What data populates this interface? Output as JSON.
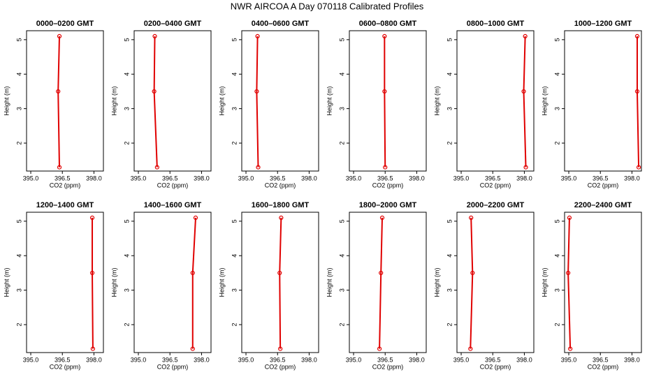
{
  "title": "NWR AIRCOA A  Day 070118  Calibrated Profiles",
  "chart_data": [
    {
      "type": "line",
      "title": "0000–0200 GMT",
      "xlabel": "CO2 (ppm)",
      "ylabel": "Height (m)",
      "color": "#e00000",
      "x": [
        396.36,
        396.3,
        396.36
      ],
      "values": [
        5.1,
        3.5,
        1.3
      ],
      "xlim": [
        394.8,
        398.45
      ],
      "ylim": [
        1.19,
        5.26
      ],
      "xticks": [
        {
          "value": 395,
          "label": "395.0"
        },
        {
          "value": 396.5,
          "label": "396.5"
        },
        {
          "value": 398,
          "label": "398.0"
        }
      ],
      "yticks": [
        2,
        3,
        4,
        5
      ]
    },
    {
      "type": "line",
      "title": "0200–0400 GMT",
      "xlabel": "CO2 (ppm)",
      "ylabel": "Height (m)",
      "color": "#e00000",
      "x": [
        395.78,
        395.75,
        395.89
      ],
      "values": [
        5.1,
        3.5,
        1.3
      ],
      "xlim": [
        394.8,
        398.45
      ],
      "ylim": [
        1.19,
        5.26
      ],
      "xticks": [
        {
          "value": 395,
          "label": "395.0"
        },
        {
          "value": 396.5,
          "label": "396.5"
        },
        {
          "value": 398,
          "label": "398.0"
        }
      ],
      "yticks": [
        2,
        3,
        4,
        5
      ]
    },
    {
      "type": "line",
      "title": "0400–0600 GMT",
      "xlabel": "CO2 (ppm)",
      "ylabel": "Height (m)",
      "color": "#e00000",
      "x": [
        395.55,
        395.51,
        395.58
      ],
      "values": [
        5.1,
        3.5,
        1.3
      ],
      "xlim": [
        394.8,
        398.45
      ],
      "ylim": [
        1.19,
        5.26
      ],
      "xticks": [
        {
          "value": 395,
          "label": "395.0"
        },
        {
          "value": 396.5,
          "label": "396.5"
        },
        {
          "value": 398,
          "label": "398.0"
        }
      ],
      "yticks": [
        2,
        3,
        4,
        5
      ]
    },
    {
      "type": "line",
      "title": "0600–0800 GMT",
      "xlabel": "CO2 (ppm)",
      "ylabel": "Height (m)",
      "color": "#e00000",
      "x": [
        396.47,
        396.47,
        396.5
      ],
      "values": [
        5.1,
        3.5,
        1.3
      ],
      "xlim": [
        394.8,
        398.45
      ],
      "ylim": [
        1.19,
        5.26
      ],
      "xticks": [
        {
          "value": 395,
          "label": "395.0"
        },
        {
          "value": 396.5,
          "label": "396.5"
        },
        {
          "value": 398,
          "label": "398.0"
        }
      ],
      "yticks": [
        2,
        3,
        4,
        5
      ]
    },
    {
      "type": "line",
      "title": "0800–1000 GMT",
      "xlabel": "CO2 (ppm)",
      "ylabel": "Height (m)",
      "color": "#e00000",
      "x": [
        398.04,
        397.97,
        398.07
      ],
      "values": [
        5.1,
        3.5,
        1.3
      ],
      "xlim": [
        394.8,
        398.45
      ],
      "ylim": [
        1.19,
        5.26
      ],
      "xticks": [
        {
          "value": 395,
          "label": "395.0"
        },
        {
          "value": 396.5,
          "label": "396.5"
        },
        {
          "value": 398,
          "label": "398.0"
        }
      ],
      "yticks": [
        2,
        3,
        4,
        5
      ]
    },
    {
      "type": "line",
      "title": "1000–1200 GMT",
      "xlabel": "CO2 (ppm)",
      "ylabel": "Height (m)",
      "color": "#e00000",
      "x": [
        398.25,
        398.25,
        398.32
      ],
      "values": [
        5.1,
        3.5,
        1.3
      ],
      "xlim": [
        394.8,
        398.45
      ],
      "ylim": [
        1.19,
        5.26
      ],
      "xticks": [
        {
          "value": 395,
          "label": "395.0"
        },
        {
          "value": 396.5,
          "label": "396.5"
        },
        {
          "value": 398,
          "label": "398.0"
        }
      ],
      "yticks": [
        2,
        3,
        4,
        5
      ]
    },
    {
      "type": "line",
      "title": "1200–1400 GMT",
      "xlabel": "CO2 (ppm)",
      "ylabel": "Height (m)",
      "color": "#e00000",
      "x": [
        397.92,
        397.92,
        397.95
      ],
      "values": [
        5.1,
        3.5,
        1.3
      ],
      "xlim": [
        394.8,
        398.45
      ],
      "ylim": [
        1.19,
        5.26
      ],
      "xticks": [
        {
          "value": 395,
          "label": "395.0"
        },
        {
          "value": 396.5,
          "label": "396.5"
        },
        {
          "value": 398,
          "label": "398.0"
        }
      ],
      "yticks": [
        2,
        3,
        4,
        5
      ]
    },
    {
      "type": "line",
      "title": "1400–1600 GMT",
      "xlabel": "CO2 (ppm)",
      "ylabel": "Height (m)",
      "color": "#e00000",
      "x": [
        397.72,
        397.58,
        397.58
      ],
      "values": [
        5.1,
        3.5,
        1.3
      ],
      "xlim": [
        394.8,
        398.45
      ],
      "ylim": [
        1.19,
        5.26
      ],
      "xticks": [
        {
          "value": 395,
          "label": "395.0"
        },
        {
          "value": 396.5,
          "label": "396.5"
        },
        {
          "value": 398,
          "label": "398.0"
        }
      ],
      "yticks": [
        2,
        3,
        4,
        5
      ]
    },
    {
      "type": "line",
      "title": "1600–1800 GMT",
      "xlabel": "CO2 (ppm)",
      "ylabel": "Height (m)",
      "color": "#e00000",
      "x": [
        396.67,
        396.6,
        396.63
      ],
      "values": [
        5.1,
        3.5,
        1.3
      ],
      "xlim": [
        394.8,
        398.45
      ],
      "ylim": [
        1.19,
        5.26
      ],
      "xticks": [
        {
          "value": 395,
          "label": "395.0"
        },
        {
          "value": 396.5,
          "label": "396.5"
        },
        {
          "value": 398,
          "label": "398.0"
        }
      ],
      "yticks": [
        2,
        3,
        4,
        5
      ]
    },
    {
      "type": "line",
      "title": "1800–2000 GMT",
      "xlabel": "CO2 (ppm)",
      "ylabel": "Height (m)",
      "color": "#e00000",
      "x": [
        396.36,
        396.3,
        396.23
      ],
      "values": [
        5.1,
        3.5,
        1.3
      ],
      "xlim": [
        394.8,
        398.45
      ],
      "ylim": [
        1.19,
        5.26
      ],
      "xticks": [
        {
          "value": 395,
          "label": "395.0"
        },
        {
          "value": 396.5,
          "label": "396.5"
        },
        {
          "value": 398,
          "label": "398.0"
        }
      ],
      "yticks": [
        2,
        3,
        4,
        5
      ]
    },
    {
      "type": "line",
      "title": "2000–2200 GMT",
      "xlabel": "CO2 (ppm)",
      "ylabel": "Height (m)",
      "color": "#e00000",
      "x": [
        395.47,
        395.54,
        395.44
      ],
      "values": [
        5.1,
        3.5,
        1.3
      ],
      "xlim": [
        394.8,
        398.45
      ],
      "ylim": [
        1.19,
        5.26
      ],
      "xticks": [
        {
          "value": 395,
          "label": "395.0"
        },
        {
          "value": 396.5,
          "label": "396.5"
        },
        {
          "value": 398,
          "label": "398.0"
        }
      ],
      "yticks": [
        2,
        3,
        4,
        5
      ]
    },
    {
      "type": "line",
      "title": "2200–2400 GMT",
      "xlabel": "CO2 (ppm)",
      "ylabel": "Height (m)",
      "color": "#e00000",
      "x": [
        395.03,
        394.97,
        395.07
      ],
      "values": [
        5.1,
        3.5,
        1.3
      ],
      "xlim": [
        394.8,
        398.45
      ],
      "ylim": [
        1.19,
        5.26
      ],
      "xticks": [
        {
          "value": 395,
          "label": "395.0"
        },
        {
          "value": 396.5,
          "label": "396.5"
        },
        {
          "value": 398,
          "label": "398.0"
        }
      ],
      "yticks": [
        2,
        3,
        4,
        5
      ]
    }
  ]
}
